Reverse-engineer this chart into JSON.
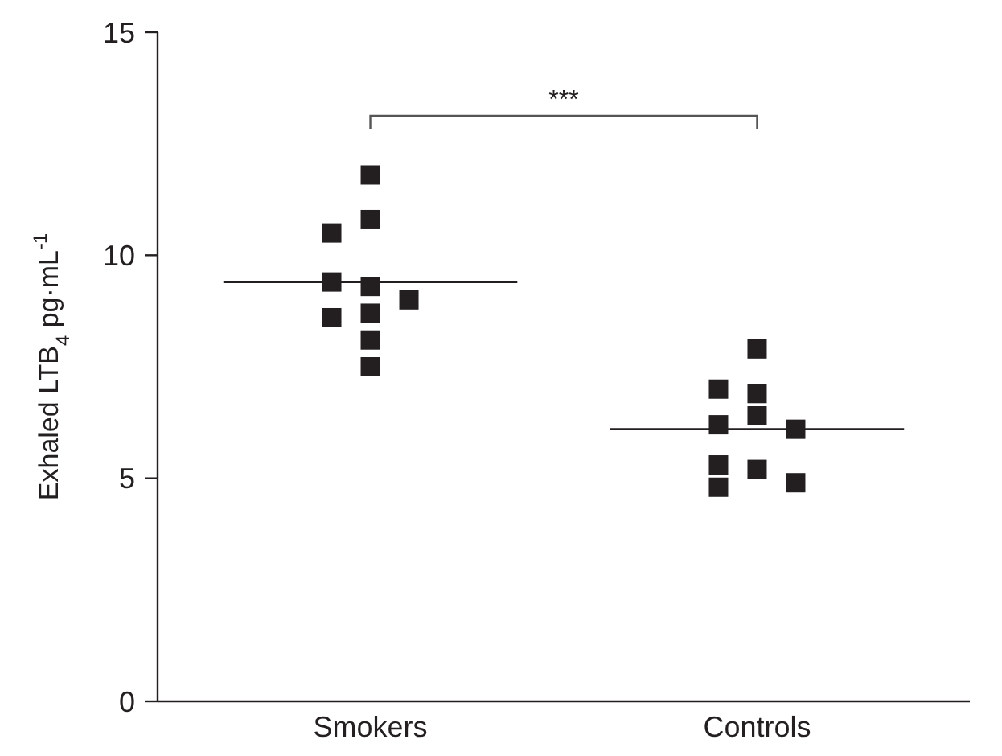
{
  "chart_data": {
    "type": "scatter",
    "ylabel": "Exhaled LTB$_{4}$ pg·mL$^{-1}$",
    "categories": [
      "Smokers",
      "Controls"
    ],
    "ylim": [
      0,
      15
    ],
    "yticks": [
      0,
      5,
      10,
      15
    ],
    "marker": "square",
    "grid": false,
    "annotations": [
      "***"
    ],
    "series": [
      {
        "color": "#231f20",
        "x": [
          "Smokers",
          "Smokers",
          "Smokers",
          "Smokers",
          "Smokers",
          "Smokers",
          "Smokers",
          "Smokers",
          "Smokers",
          "Smokers",
          "Controls",
          "Controls",
          "Controls",
          "Controls",
          "Controls",
          "Controls",
          "Controls",
          "Controls",
          "Controls",
          "Controls"
        ],
        "values": [
          11.8,
          10.8,
          10.5,
          9.3,
          9.4,
          9.0,
          8.7,
          8.6,
          8.1,
          7.5,
          7.9,
          6.9,
          7.0,
          6.4,
          6.2,
          6.1,
          5.2,
          5.3,
          4.8,
          4.9
        ]
      },
      {
        "type": "box",
        "color": "#231f20",
        "boxes": [
          {
            "low": 9.4,
            "q1": 9.4,
            "median": 9.4,
            "q3": 9.4,
            "high": 9.4
          },
          {
            "low": 6.1,
            "q1": 6.1,
            "median": 6.1,
            "q3": 6.1,
            "high": 6.1
          }
        ]
      }
    ]
  }
}
